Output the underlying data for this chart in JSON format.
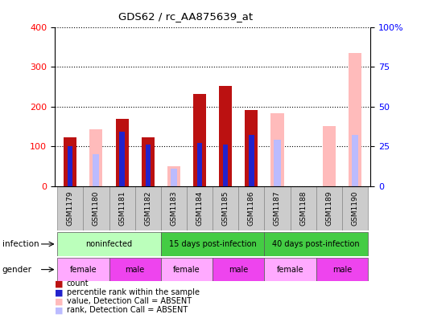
{
  "title": "GDS62 / rc_AA875639_at",
  "samples": [
    "GSM1179",
    "GSM1180",
    "GSM1181",
    "GSM1182",
    "GSM1183",
    "GSM1184",
    "GSM1185",
    "GSM1186",
    "GSM1187",
    "GSM1188",
    "GSM1189",
    "GSM1190"
  ],
  "count_values": [
    122,
    0,
    170,
    122,
    0,
    232,
    252,
    192,
    0,
    0,
    0,
    0
  ],
  "rank_values": [
    25,
    0,
    34,
    26,
    0,
    27,
    26,
    32,
    0,
    0,
    0,
    0
  ],
  "absent_value_values": [
    0,
    142,
    0,
    0,
    50,
    0,
    0,
    0,
    183,
    0,
    150,
    335
  ],
  "absent_rank_values": [
    0,
    20,
    0,
    0,
    11,
    0,
    0,
    0,
    29,
    0,
    0,
    32
  ],
  "ylim_left": [
    0,
    400
  ],
  "ylim_right": [
    0,
    100
  ],
  "yticks_left": [
    0,
    100,
    200,
    300,
    400
  ],
  "yticks_right": [
    0,
    25,
    50,
    75,
    100
  ],
  "ytick_labels_right": [
    "0",
    "25",
    "50",
    "75",
    "100%"
  ],
  "color_count": "#bb1111",
  "color_rank": "#2222cc",
  "color_absent_value": "#ffbbbb",
  "color_absent_rank": "#bbbbff",
  "infection_groups": [
    {
      "label": "noninfected",
      "start": 0,
      "end": 4,
      "color": "#bbffbb"
    },
    {
      "label": "15 days post-infection",
      "start": 4,
      "end": 8,
      "color": "#44cc44"
    },
    {
      "label": "40 days post-infection",
      "start": 8,
      "end": 12,
      "color": "#44cc44"
    }
  ],
  "gender_groups": [
    {
      "label": "female",
      "start": 0,
      "end": 2,
      "color": "#ffaaff"
    },
    {
      "label": "male",
      "start": 2,
      "end": 4,
      "color": "#ee44ee"
    },
    {
      "label": "female",
      "start": 4,
      "end": 6,
      "color": "#ffaaff"
    },
    {
      "label": "male",
      "start": 6,
      "end": 8,
      "color": "#ee44ee"
    },
    {
      "label": "female",
      "start": 8,
      "end": 10,
      "color": "#ffaaff"
    },
    {
      "label": "male",
      "start": 10,
      "end": 12,
      "color": "#ee44ee"
    }
  ],
  "legend_items": [
    {
      "label": "count",
      "color": "#bb1111"
    },
    {
      "label": "percentile rank within the sample",
      "color": "#2222cc"
    },
    {
      "label": "value, Detection Call = ABSENT",
      "color": "#ffbbbb"
    },
    {
      "label": "rank, Detection Call = ABSENT",
      "color": "#bbbbff"
    }
  ],
  "bar_width": 0.5
}
